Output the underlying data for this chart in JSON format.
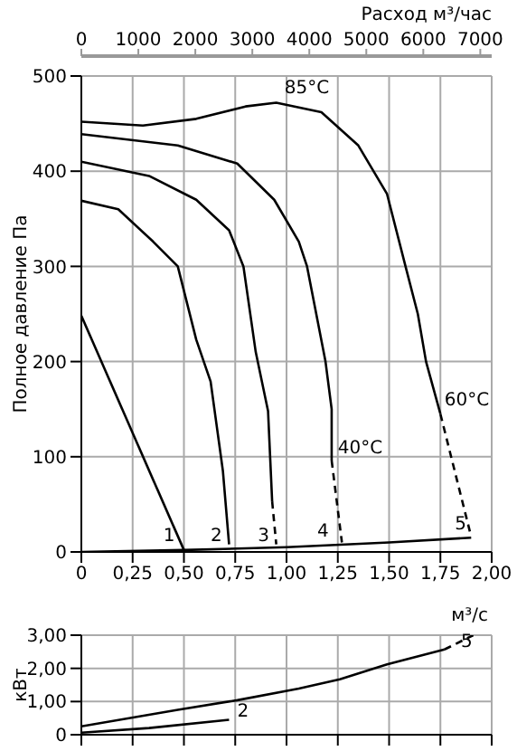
{
  "chart_data": [
    {
      "type": "line",
      "x2label": "Расход м³/час",
      "xlabel": "м³/с",
      "ylabel": "Полное давление Па",
      "xlim": [
        0,
        2
      ],
      "xticks": [
        0,
        {
          "value": 0.25,
          "label": "0,25"
        },
        {
          "value": 0.5,
          "label": "0,50"
        },
        {
          "value": 0.75,
          "label": "0,75"
        },
        {
          "value": 1,
          "label": "1,00"
        },
        {
          "value": 1.25,
          "label": "1,25"
        },
        {
          "value": 1.5,
          "label": "1,50"
        },
        {
          "value": 1.75,
          "label": "1,75"
        },
        {
          "value": 2,
          "label": "2,00"
        }
      ],
      "x2lim": [
        0,
        7200
      ],
      "x2ticks": [
        0,
        1000,
        2000,
        3000,
        4000,
        5000,
        6000,
        7000
      ],
      "ylim": [
        0,
        500
      ],
      "yticks": [
        0,
        100,
        200,
        300,
        400,
        500
      ],
      "grid": true,
      "marker": "none",
      "series": [
        {
          "color": "#000000",
          "line_style": "solid",
          "x": [
            0,
            0.5
          ],
          "values": [
            248,
            2
          ]
        },
        {
          "color": "#000000",
          "line_style": "solid",
          "x": [
            0,
            0.18,
            0.35,
            0.47,
            0.56,
            0.63,
            0.69,
            0.72
          ],
          "values": [
            369,
            360,
            326,
            300,
            223,
            179,
            85,
            8
          ]
        },
        {
          "color": "#000000",
          "line_style": "solid",
          "x": [
            0,
            0.33,
            0.56,
            0.72,
            0.79,
            0.85,
            0.91,
            0.93
          ],
          "values": [
            410,
            395,
            370,
            338,
            300,
            210,
            148,
            53
          ]
        },
        {
          "color": "#000000",
          "line_style": "dashed",
          "x": [
            0.93,
            0.95
          ],
          "values": [
            53,
            8
          ]
        },
        {
          "color": "#000000",
          "line_style": "solid",
          "x": [
            0,
            0.47,
            0.76,
            0.94,
            1.06,
            1.1,
            1.19,
            1.22,
            1.22
          ],
          "values": [
            439,
            427,
            408,
            370,
            326,
            300,
            200,
            150,
            96
          ]
        },
        {
          "color": "#000000",
          "line_style": "dashed",
          "x": [
            1.22,
            1.27
          ],
          "values": [
            96,
            10
          ]
        },
        {
          "color": "#000000",
          "line_style": "solid",
          "x": [
            0,
            0.3,
            0.56,
            0.8,
            0.95,
            1.17,
            1.35,
            1.49,
            1.58,
            1.64,
            1.68,
            1.75
          ],
          "values": [
            452,
            448,
            455,
            468,
            472,
            462,
            427,
            376,
            300,
            250,
            200,
            145
          ]
        },
        {
          "color": "#000000",
          "line_style": "dashed",
          "x": [
            1.75,
            1.9
          ],
          "values": [
            145,
            16
          ]
        },
        {
          "color": "#000000",
          "line_style": "solid",
          "x": [
            0,
            0.5,
            1,
            1.5,
            1.9
          ],
          "values": [
            0,
            2,
            5,
            10,
            15
          ]
        }
      ],
      "annotations": [
        {
          "text": "1",
          "x": 0.4,
          "y": 8
        },
        {
          "text": "2",
          "x": 0.63,
          "y": 8
        },
        {
          "text": "3",
          "x": 0.86,
          "y": 8
        },
        {
          "text": "4",
          "x": 1.15,
          "y": 12
        },
        {
          "text": "5",
          "x": 1.82,
          "y": 20
        },
        {
          "text": "85°C",
          "x": 0.99,
          "y": 478
        },
        {
          "text": "40°C",
          "x": 1.25,
          "y": 100
        },
        {
          "text": "60°C",
          "x": 1.77,
          "y": 150
        }
      ]
    },
    {
      "type": "line",
      "ylabel": "кВт",
      "xlim": [
        0,
        2
      ],
      "xticks": [
        {
          "value": 0,
          "label": null
        },
        {
          "value": 0.25,
          "label": null
        },
        {
          "value": 0.5,
          "label": null
        },
        {
          "value": 0.75,
          "label": null
        },
        {
          "value": 1,
          "label": null
        },
        {
          "value": 1.25,
          "label": null
        },
        {
          "value": 1.5,
          "label": null
        },
        {
          "value": 1.75,
          "label": null
        },
        {
          "value": 2,
          "label": null
        }
      ],
      "tick_labels": "y",
      "ylim": [
        0,
        3
      ],
      "yticks": [
        0,
        {
          "value": 1,
          "label": "1,00"
        },
        {
          "value": 2,
          "label": "2,00"
        },
        {
          "value": 3,
          "label": "3,00"
        }
      ],
      "grid": true,
      "marker": "none",
      "series": [
        {
          "color": "#000000",
          "line_style": "solid",
          "x": [
            0,
            0.47,
            0.76,
            1.06,
            1.26,
            1.49,
            1.77
          ],
          "values": [
            0.25,
            0.75,
            1.04,
            1.39,
            1.67,
            2.12,
            2.57
          ]
        },
        {
          "color": "#000000",
          "line_style": "dashed",
          "x": [
            1.77,
            1.91
          ],
          "values": [
            2.57,
            3
          ]
        },
        {
          "color": "#000000",
          "line_style": "solid",
          "x": [
            0,
            0.33,
            0.72
          ],
          "values": [
            0.06,
            0.2,
            0.45
          ]
        }
      ],
      "annotations": [
        {
          "text": "2",
          "x": 0.76,
          "y": 0.45
        },
        {
          "text": "5",
          "x": 1.85,
          "y": 2.55
        }
      ]
    }
  ]
}
